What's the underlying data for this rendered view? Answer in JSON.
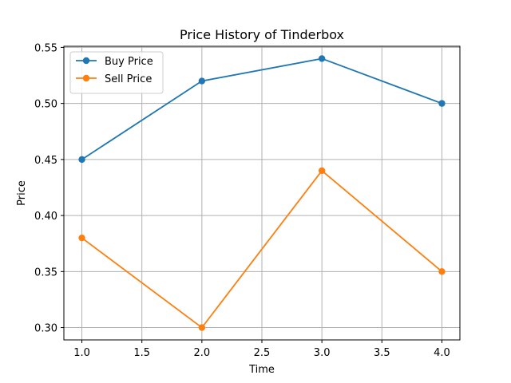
{
  "chart_data": {
    "type": "line",
    "title": "Price History of Tinderbox",
    "xlabel": "Time",
    "ylabel": "Price",
    "x": [
      1.0,
      2.0,
      3.0,
      4.0
    ],
    "series": [
      {
        "name": "Buy Price",
        "color": "#1f77b4",
        "values": [
          0.45,
          0.52,
          0.54,
          0.5
        ]
      },
      {
        "name": "Sell Price",
        "color": "#ff7f0e",
        "values": [
          0.38,
          0.3,
          0.44,
          0.35
        ]
      }
    ],
    "xlim": [
      0.85,
      4.15
    ],
    "ylim": [
      0.289,
      0.551
    ],
    "x_ticks": [
      1.0,
      1.5,
      2.0,
      2.5,
      3.0,
      3.5,
      4.0
    ],
    "x_tick_labels": [
      "1.0",
      "1.5",
      "2.0",
      "2.5",
      "3.0",
      "3.5",
      "4.0"
    ],
    "y_ticks": [
      0.3,
      0.35,
      0.4,
      0.45,
      0.5,
      0.55
    ],
    "y_tick_labels": [
      "0.30",
      "0.35",
      "0.40",
      "0.45",
      "0.50",
      "0.55"
    ],
    "grid": true,
    "legend_position": "top-left"
  }
}
